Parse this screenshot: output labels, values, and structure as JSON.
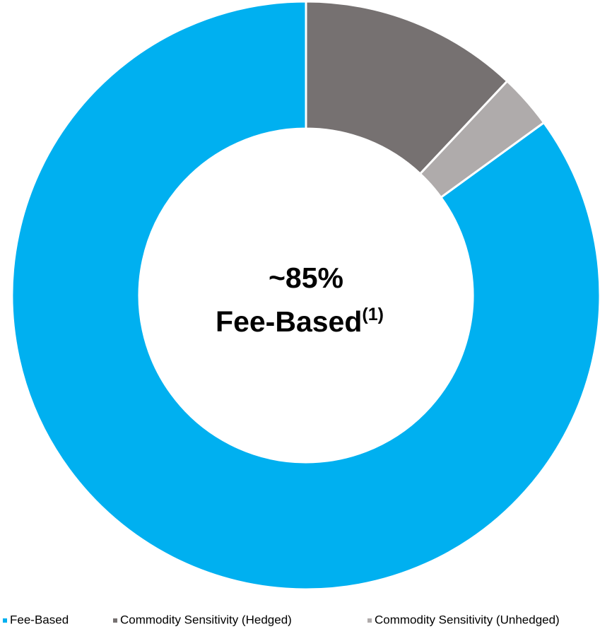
{
  "chart_data": {
    "type": "donut",
    "categories": [
      "Fee-Based",
      "Commodity Sensitivity (Hedged)",
      "Commodity Sensitivity (Unhedged)"
    ],
    "values": [
      85,
      12,
      3
    ],
    "colors": [
      "#00b0f0",
      "#767171",
      "#afabab"
    ],
    "center_label": [
      "~85%",
      "Fee-Based"
    ],
    "center_note": "(1)",
    "legend": "bottom"
  }
}
